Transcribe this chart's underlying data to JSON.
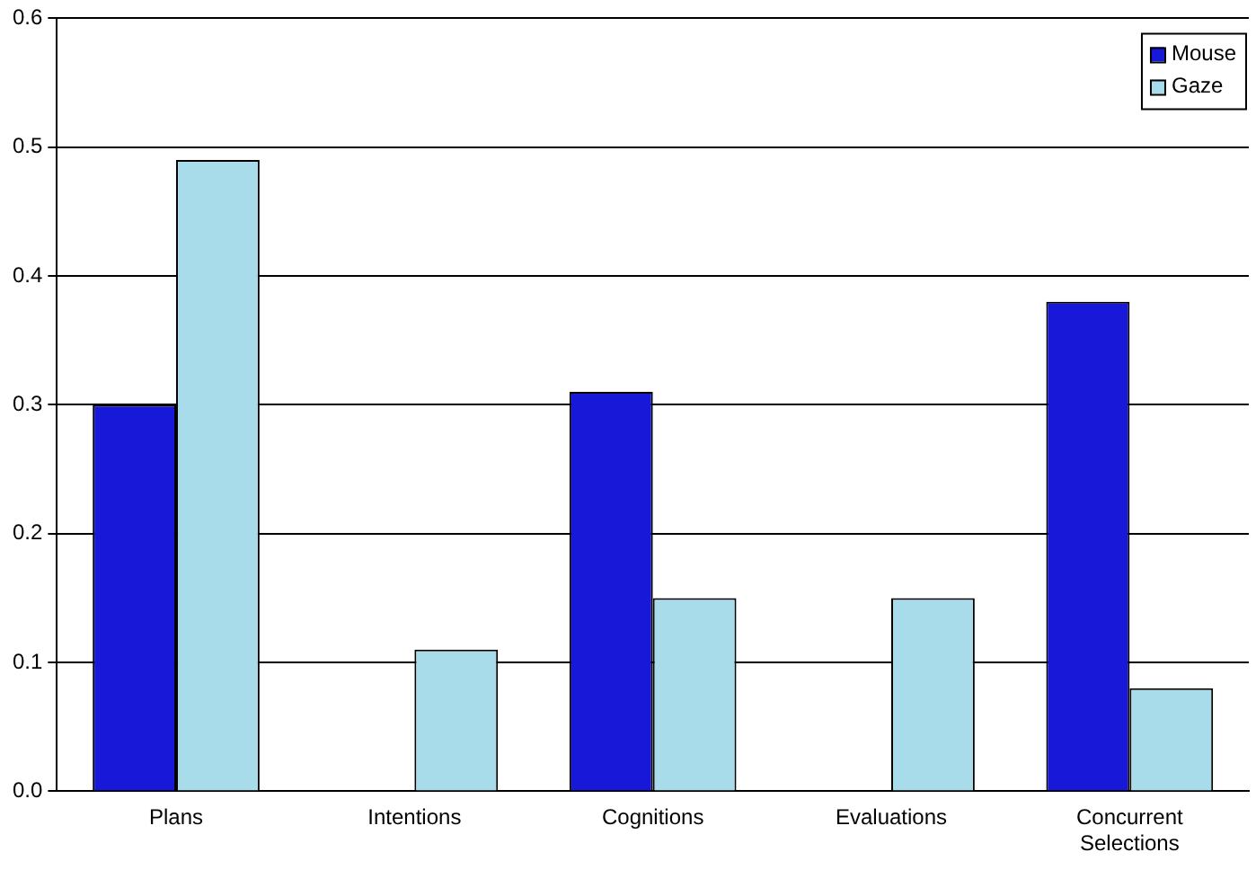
{
  "chart_data": {
    "type": "bar",
    "categories": [
      "Plans",
      "Intentions",
      "Cognitions",
      "Evaluations",
      "Concurrent Selections"
    ],
    "series": [
      {
        "name": "Mouse",
        "color": "#1818d8",
        "values": [
          0.3,
          0,
          0.31,
          0,
          0.38
        ]
      },
      {
        "name": "Gaze",
        "color": "#a8dcea",
        "values": [
          0.49,
          0.11,
          0.15,
          0.15,
          0.08
        ]
      }
    ],
    "ylim": [
      0,
      0.6
    ],
    "yticks": [
      {
        "value": 0,
        "label": "0.0"
      },
      {
        "value": 0.1,
        "label": "0.1"
      },
      {
        "value": 0.2,
        "label": "0.2"
      },
      {
        "value": 0.3,
        "label": "0.3"
      },
      {
        "value": 0.4,
        "label": "0.4"
      },
      {
        "value": 0.5,
        "label": "0.5"
      },
      {
        "value": 0.6,
        "label": "0.6"
      }
    ],
    "grid": "y",
    "legend": "top right"
  }
}
